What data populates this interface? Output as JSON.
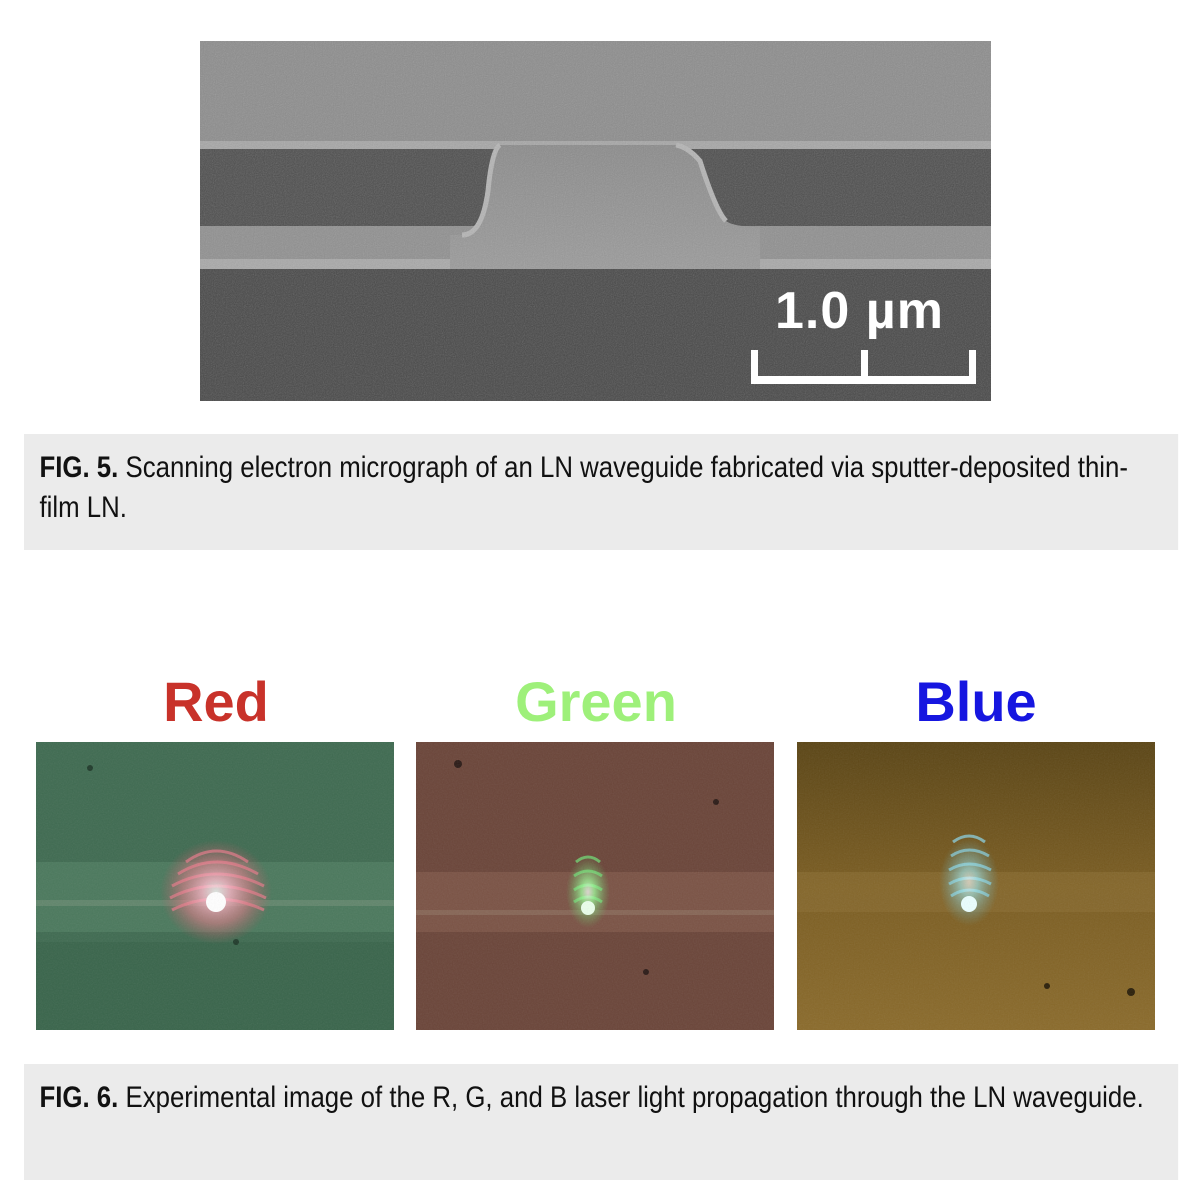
{
  "fig5": {
    "scale_bar_label": "1.0 µm",
    "caption_label": "FIG. 5.",
    "caption_text": " Scanning electron micrograph of an LN waveguide fabricated via sputter-deposited thin-film LN."
  },
  "fig6": {
    "panels": [
      {
        "label": "Red",
        "color": "#c8322a"
      },
      {
        "label": "Green",
        "color": "#9ef07a"
      },
      {
        "label": "Blue",
        "color": "#1616e0"
      }
    ],
    "caption_label": "FIG. 6.",
    "caption_text": " Experimental image of the R, G, and B laser light propagation through the LN waveguide."
  }
}
